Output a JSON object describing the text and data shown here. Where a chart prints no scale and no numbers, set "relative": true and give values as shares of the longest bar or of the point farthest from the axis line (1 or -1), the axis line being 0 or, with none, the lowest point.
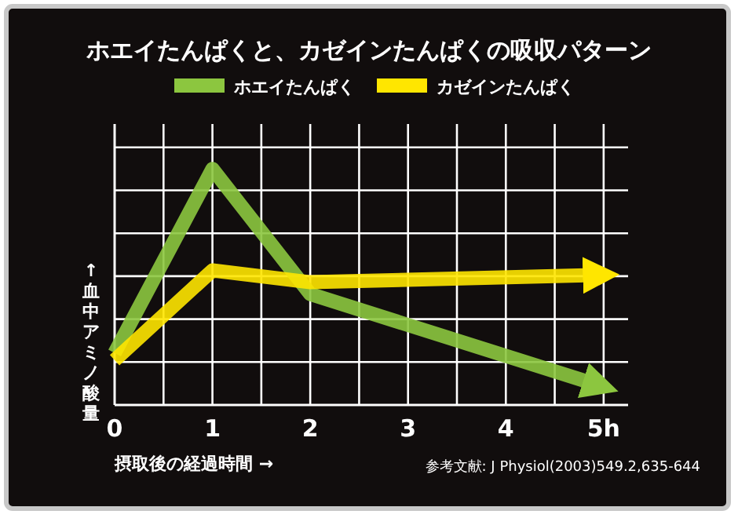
{
  "chart_data": {
    "type": "line",
    "title": "ホエイたんぱくと、カゼインたんぱくの吸収パターン",
    "xlabel": "摂取後の経過時間 →",
    "ylabel": "↑血中アミノ酸量",
    "relative": true,
    "x": [
      0,
      1,
      2,
      4.9
    ],
    "series": [
      {
        "name": "ホエイたんぱく",
        "color": "#8cc63f",
        "values": [
          0.22,
          1,
          0.47,
          0.09
        ]
      },
      {
        "name": "カゼインたんぱく",
        "color": "#ffe600",
        "values": [
          0.19,
          0.57,
          0.52,
          0.55
        ]
      }
    ],
    "xlim": [
      0,
      5.25
    ],
    "xticks": [
      0,
      1,
      2,
      3,
      4,
      {
        "value": 5,
        "label": "5h"
      }
    ],
    "grid": true,
    "legend": "top",
    "marker": "none",
    "line_style": "solid",
    "annotations": [
      "参考文献: J Physiol(2003)549.2,635-644"
    ]
  }
}
